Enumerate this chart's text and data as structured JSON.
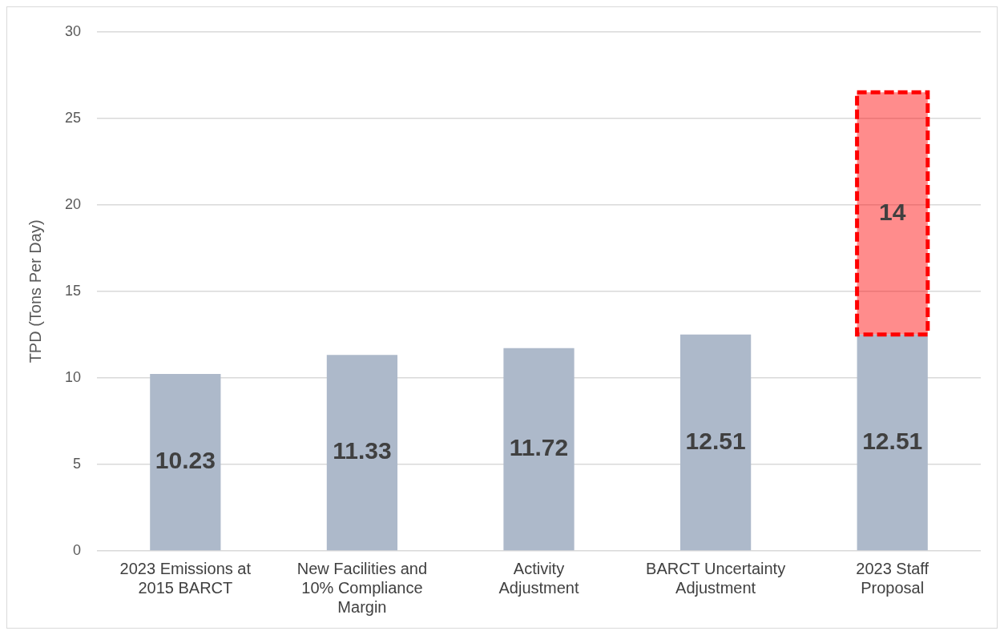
{
  "chart_data": {
    "type": "bar",
    "stacked": true,
    "ylabel": "TPD (Tons Per Day)",
    "categories": [
      "2023 Emissions at 2015 BARCT",
      "New Facilities and 10% Compliance Margin",
      "Activity Adjustment",
      "BARCT Uncertainty Adjustment",
      "2023 Staff Proposal"
    ],
    "series": [
      {
        "color": "#adb9ca",
        "values": [
          10.23,
          11.33,
          11.72,
          12.51,
          12.51
        ]
      },
      {
        "color": "#ff0000",
        "line_style": "dashed",
        "values": [
          null,
          null,
          null,
          null,
          14
        ]
      }
    ],
    "ylim": [
      0,
      30
    ],
    "yticks": [
      0,
      5,
      10,
      15,
      20,
      25,
      30
    ],
    "grid": "y",
    "data_labels": true,
    "legend": false
  }
}
